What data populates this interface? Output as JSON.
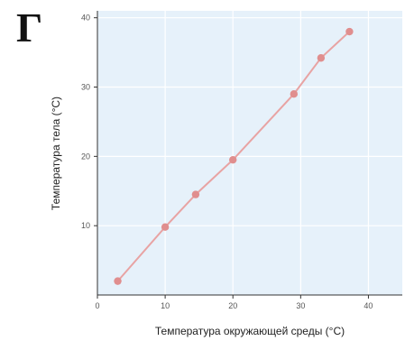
{
  "panel_label": "Г",
  "chart_data": {
    "type": "line",
    "xlabel": "Температура окружающей среды (°C)",
    "ylabel": "Температура тела (°C)",
    "xlim": [
      0,
      45
    ],
    "ylim": [
      0,
      41
    ],
    "xticks": [
      0,
      10,
      20,
      30,
      40
    ],
    "yticks": [
      10,
      20,
      30,
      40
    ],
    "grid": true,
    "series": [
      {
        "x": [
          3,
          10,
          14.5,
          20,
          29,
          33,
          37.2
        ],
        "y": [
          2,
          9.8,
          14.5,
          19.5,
          29,
          34.2,
          38
        ]
      }
    ],
    "colors": {
      "line": "#e8a3a3",
      "marker": "#e08e8e",
      "plot_bg": "#e6f1fa",
      "grid": "#ffffff"
    }
  }
}
